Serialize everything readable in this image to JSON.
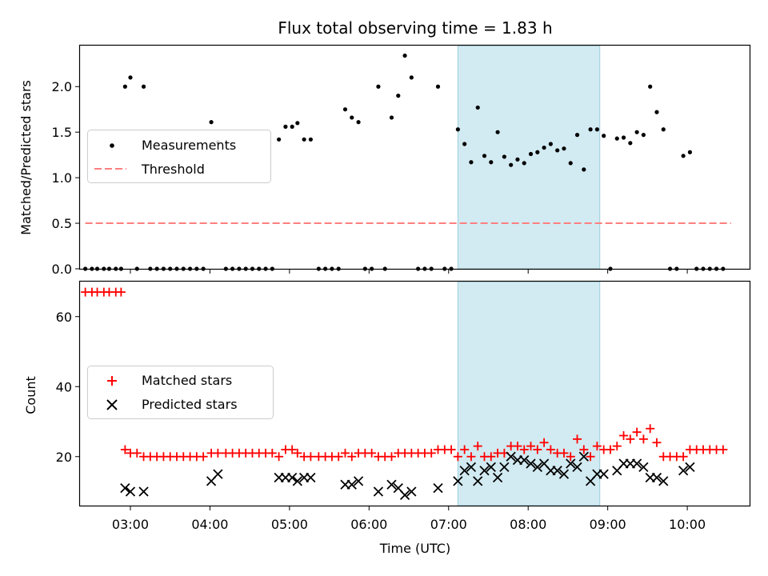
{
  "chart_data": [
    {
      "type": "scatter",
      "title": "Flux total observing time = 1.83 h",
      "xlabel": "",
      "ylabel": "Matched/Predicted stars",
      "xlim": [
        "02:22",
        "10:47"
      ],
      "ylim": [
        0,
        2.45
      ],
      "yticks": [
        "0.0",
        "0.5",
        "1.0",
        "1.5",
        "2.0"
      ],
      "shaded_interval": [
        "07:07",
        "08:54"
      ],
      "legend_position": "center-left",
      "series": [
        {
          "name": "Measurements",
          "color": "#000000",
          "marker": "dot",
          "points": [
            [
              "02:26",
              0
            ],
            [
              "02:31",
              0
            ],
            [
              "02:35",
              0
            ],
            [
              "02:40",
              0
            ],
            [
              "02:44",
              0
            ],
            [
              "02:49",
              0
            ],
            [
              "02:53",
              0
            ],
            [
              "02:56",
              2.0
            ],
            [
              "03:00",
              2.1
            ],
            [
              "03:05",
              0
            ],
            [
              "03:10",
              2.0
            ],
            [
              "03:15",
              0
            ],
            [
              "03:20",
              0
            ],
            [
              "03:25",
              0
            ],
            [
              "03:30",
              0
            ],
            [
              "03:35",
              0
            ],
            [
              "03:40",
              0
            ],
            [
              "03:45",
              0
            ],
            [
              "03:50",
              0
            ],
            [
              "03:55",
              0
            ],
            [
              "04:01",
              1.61
            ],
            [
              "04:06",
              1.39
            ],
            [
              "04:12",
              0
            ],
            [
              "04:17",
              0
            ],
            [
              "04:22",
              0
            ],
            [
              "04:27",
              0
            ],
            [
              "04:32",
              0
            ],
            [
              "04:37",
              0
            ],
            [
              "04:42",
              0
            ],
            [
              "04:47",
              0
            ],
            [
              "04:52",
              1.42
            ],
            [
              "04:57",
              1.56
            ],
            [
              "05:02",
              1.56
            ],
            [
              "05:06",
              1.6
            ],
            [
              "05:11",
              1.42
            ],
            [
              "05:16",
              1.42
            ],
            [
              "05:22",
              0
            ],
            [
              "05:27",
              0
            ],
            [
              "05:32",
              0
            ],
            [
              "05:37",
              0
            ],
            [
              "05:42",
              1.75
            ],
            [
              "05:47",
              1.66
            ],
            [
              "05:52",
              1.61
            ],
            [
              "05:57",
              0
            ],
            [
              "06:02",
              0
            ],
            [
              "06:07",
              2.0
            ],
            [
              "06:12",
              0
            ],
            [
              "06:17",
              1.66
            ],
            [
              "06:22",
              1.9
            ],
            [
              "06:27",
              2.34
            ],
            [
              "06:32",
              2.1
            ],
            [
              "06:37",
              0
            ],
            [
              "06:42",
              0
            ],
            [
              "06:47",
              0
            ],
            [
              "06:52",
              2.0
            ],
            [
              "06:57",
              0
            ],
            [
              "07:02",
              0
            ],
            [
              "07:07",
              1.53
            ],
            [
              "07:12",
              1.37
            ],
            [
              "07:17",
              1.17
            ],
            [
              "07:22",
              1.77
            ],
            [
              "07:27",
              1.24
            ],
            [
              "07:32",
              1.17
            ],
            [
              "07:37",
              1.5
            ],
            [
              "07:42",
              1.23
            ],
            [
              "07:47",
              1.14
            ],
            [
              "07:52",
              1.2
            ],
            [
              "07:57",
              1.16
            ],
            [
              "08:02",
              1.26
            ],
            [
              "08:07",
              1.28
            ],
            [
              "08:12",
              1.33
            ],
            [
              "08:17",
              1.37
            ],
            [
              "08:22",
              1.3
            ],
            [
              "08:27",
              1.32
            ],
            [
              "08:32",
              1.16
            ],
            [
              "08:37",
              1.47
            ],
            [
              "08:42",
              1.09
            ],
            [
              "08:47",
              1.53
            ],
            [
              "08:52",
              1.53
            ],
            [
              "08:57",
              1.46
            ],
            [
              "09:02",
              0
            ],
            [
              "09:07",
              1.43
            ],
            [
              "09:12",
              1.44
            ],
            [
              "09:17",
              1.38
            ],
            [
              "09:22",
              1.5
            ],
            [
              "09:27",
              1.47
            ],
            [
              "09:32",
              2.0
            ],
            [
              "09:37",
              1.72
            ],
            [
              "09:42",
              1.53
            ],
            [
              "09:47",
              0
            ],
            [
              "09:52",
              0
            ],
            [
              "09:57",
              1.24
            ],
            [
              "10:02",
              1.28
            ],
            [
              "10:07",
              0
            ],
            [
              "10:12",
              0
            ],
            [
              "10:17",
              0
            ],
            [
              "10:22",
              0
            ],
            [
              "10:27",
              0
            ]
          ]
        },
        {
          "name": "Threshold",
          "color": "#ff7f7f",
          "style": "dashed",
          "points": [
            [
              "02:26",
              0.5
            ],
            [
              "10:33",
              0.5
            ]
          ]
        }
      ]
    },
    {
      "type": "scatter",
      "title": "",
      "xlabel": "Time (UTC)",
      "ylabel": "Count",
      "xlim": [
        "02:22",
        "10:47"
      ],
      "ylim": [
        6,
        70
      ],
      "yticks": [
        "20",
        "40",
        "60"
      ],
      "xticks": [
        "03:00",
        "04:00",
        "05:00",
        "06:00",
        "07:00",
        "08:00",
        "09:00",
        "10:00"
      ],
      "shaded_interval": [
        "07:07",
        "08:54"
      ],
      "legend_position": "center-left",
      "series": [
        {
          "name": "Matched stars",
          "color": "#ff0000",
          "marker": "plus",
          "points": [
            [
              "02:26",
              67
            ],
            [
              "02:31",
              67
            ],
            [
              "02:35",
              67
            ],
            [
              "02:40",
              67
            ],
            [
              "02:44",
              67
            ],
            [
              "02:49",
              67
            ],
            [
              "02:53",
              67
            ],
            [
              "02:56",
              22
            ],
            [
              "03:00",
              21
            ],
            [
              "03:05",
              21
            ],
            [
              "03:10",
              20
            ],
            [
              "03:15",
              20
            ],
            [
              "03:20",
              20
            ],
            [
              "03:25",
              20
            ],
            [
              "03:30",
              20
            ],
            [
              "03:35",
              20
            ],
            [
              "03:40",
              20
            ],
            [
              "03:45",
              20
            ],
            [
              "03:50",
              20
            ],
            [
              "03:55",
              20
            ],
            [
              "04:01",
              21
            ],
            [
              "04:06",
              21
            ],
            [
              "04:12",
              21
            ],
            [
              "04:17",
              21
            ],
            [
              "04:22",
              21
            ],
            [
              "04:27",
              21
            ],
            [
              "04:32",
              21
            ],
            [
              "04:37",
              21
            ],
            [
              "04:42",
              21
            ],
            [
              "04:47",
              21
            ],
            [
              "04:52",
              20
            ],
            [
              "04:57",
              22
            ],
            [
              "05:02",
              22
            ],
            [
              "05:06",
              21
            ],
            [
              "05:11",
              20
            ],
            [
              "05:16",
              20
            ],
            [
              "05:22",
              20
            ],
            [
              "05:27",
              20
            ],
            [
              "05:32",
              20
            ],
            [
              "05:37",
              20
            ],
            [
              "05:42",
              21
            ],
            [
              "05:47",
              20
            ],
            [
              "05:52",
              21
            ],
            [
              "05:57",
              21
            ],
            [
              "06:02",
              21
            ],
            [
              "06:07",
              20
            ],
            [
              "06:12",
              20
            ],
            [
              "06:17",
              20
            ],
            [
              "06:22",
              21
            ],
            [
              "06:27",
              21
            ],
            [
              "06:32",
              21
            ],
            [
              "06:37",
              21
            ],
            [
              "06:42",
              21
            ],
            [
              "06:47",
              21
            ],
            [
              "06:52",
              22
            ],
            [
              "06:57",
              22
            ],
            [
              "07:02",
              22
            ],
            [
              "07:07",
              20
            ],
            [
              "07:12",
              22
            ],
            [
              "07:17",
              20
            ],
            [
              "07:22",
              23
            ],
            [
              "07:27",
              20
            ],
            [
              "07:32",
              20
            ],
            [
              "07:37",
              21
            ],
            [
              "07:42",
              21
            ],
            [
              "07:47",
              23
            ],
            [
              "07:52",
              23
            ],
            [
              "07:57",
              22
            ],
            [
              "08:02",
              23
            ],
            [
              "08:07",
              22
            ],
            [
              "08:12",
              24
            ],
            [
              "08:17",
              22
            ],
            [
              "08:22",
              21
            ],
            [
              "08:27",
              21
            ],
            [
              "08:32",
              20
            ],
            [
              "08:37",
              25
            ],
            [
              "08:42",
              22
            ],
            [
              "08:47",
              20
            ],
            [
              "08:52",
              23
            ],
            [
              "08:57",
              22
            ],
            [
              "09:02",
              22
            ],
            [
              "09:07",
              23
            ],
            [
              "09:12",
              26
            ],
            [
              "09:17",
              25
            ],
            [
              "09:22",
              27
            ],
            [
              "09:27",
              25
            ],
            [
              "09:32",
              28
            ],
            [
              "09:37",
              24
            ],
            [
              "09:42",
              20
            ],
            [
              "09:47",
              20
            ],
            [
              "09:52",
              20
            ],
            [
              "09:57",
              20
            ],
            [
              "10:02",
              22
            ],
            [
              "10:07",
              22
            ],
            [
              "10:12",
              22
            ],
            [
              "10:17",
              22
            ],
            [
              "10:22",
              22
            ],
            [
              "10:27",
              22
            ]
          ]
        },
        {
          "name": "Predicted stars",
          "color": "#000000",
          "marker": "x",
          "points": [
            [
              "02:56",
              11
            ],
            [
              "03:00",
              10
            ],
            [
              "03:10",
              10
            ],
            [
              "04:01",
              13
            ],
            [
              "04:06",
              15
            ],
            [
              "04:52",
              14
            ],
            [
              "04:57",
              14
            ],
            [
              "05:02",
              14
            ],
            [
              "05:06",
              13
            ],
            [
              "05:11",
              14
            ],
            [
              "05:16",
              14
            ],
            [
              "05:42",
              12
            ],
            [
              "05:47",
              12
            ],
            [
              "05:52",
              13
            ],
            [
              "06:07",
              10
            ],
            [
              "06:17",
              12
            ],
            [
              "06:22",
              11
            ],
            [
              "06:27",
              9
            ],
            [
              "06:32",
              10
            ],
            [
              "06:52",
              11
            ],
            [
              "07:07",
              13
            ],
            [
              "07:12",
              16
            ],
            [
              "07:17",
              17
            ],
            [
              "07:22",
              13
            ],
            [
              "07:27",
              16
            ],
            [
              "07:32",
              17
            ],
            [
              "07:37",
              14
            ],
            [
              "07:42",
              17
            ],
            [
              "07:47",
              20
            ],
            [
              "07:52",
              19
            ],
            [
              "07:57",
              19
            ],
            [
              "08:02",
              18
            ],
            [
              "08:07",
              17
            ],
            [
              "08:12",
              18
            ],
            [
              "08:17",
              16
            ],
            [
              "08:22",
              16
            ],
            [
              "08:27",
              15
            ],
            [
              "08:32",
              18
            ],
            [
              "08:37",
              17
            ],
            [
              "08:42",
              20
            ],
            [
              "08:47",
              13
            ],
            [
              "08:52",
              15
            ],
            [
              "08:57",
              15
            ],
            [
              "09:07",
              16
            ],
            [
              "09:12",
              18
            ],
            [
              "09:17",
              18
            ],
            [
              "09:22",
              18
            ],
            [
              "09:27",
              17
            ],
            [
              "09:32",
              14
            ],
            [
              "09:37",
              14
            ],
            [
              "09:42",
              13
            ],
            [
              "09:57",
              16
            ],
            [
              "10:02",
              17
            ]
          ]
        }
      ]
    }
  ]
}
